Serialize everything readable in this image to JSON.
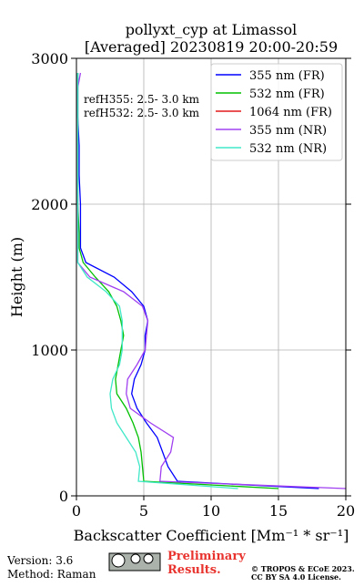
{
  "chart_data": {
    "type": "line",
    "title": "pollyxt_cyp at Limassol",
    "subtitle": "[Averaged] 20230819 20:00-20:59",
    "x_label": "Backscatter Coefficient [Mm⁻¹ * sr⁻¹]",
    "y_label": "Height (m)",
    "annotations": [
      "refH355:  2.5- 3.0 km",
      "refH532:  2.5- 3.0 km"
    ],
    "y": [
      50,
      100,
      200,
      300,
      400,
      500,
      600,
      700,
      800,
      900,
      1000,
      1100,
      1200,
      1300,
      1400,
      1500,
      1600,
      1700,
      1800,
      2000,
      2200,
      2400,
      2600,
      2800,
      2900
    ],
    "series": [
      {
        "name": "355 nm (FR)",
        "color": "#0000ff",
        "values": [
          18,
          7.5,
          6.8,
          6.4,
          6.0,
          5.2,
          4.5,
          4.1,
          4.3,
          4.8,
          5.1,
          5.1,
          5.3,
          5.0,
          4.1,
          2.8,
          0.7,
          0.3,
          0.3,
          0.3,
          0.2,
          0.2,
          0.1,
          0.1,
          0.1
        ]
      },
      {
        "name": "532 nm (FR)",
        "color": "#00c000",
        "values": [
          15,
          5.0,
          4.9,
          4.8,
          4.6,
          4.2,
          3.7,
          3.0,
          2.9,
          3.1,
          3.3,
          3.5,
          3.3,
          3.0,
          2.4,
          1.4,
          0.5,
          0.2,
          0.2,
          0.1,
          0.1,
          0.1,
          0.1,
          0.1,
          0.1
        ]
      },
      {
        "name": "1064 nm (FR)",
        "color": "#e41a1c",
        "values": [
          null,
          null,
          null,
          null,
          null,
          null,
          null,
          null,
          null,
          null,
          null,
          null,
          null,
          null,
          null,
          null,
          null,
          null,
          null,
          null,
          null,
          null,
          null,
          null,
          null
        ]
      },
      {
        "name": "355 nm (NR)",
        "color": "#a040f0",
        "values": [
          20,
          6.2,
          6.3,
          7.0,
          7.2,
          5.5,
          4.0,
          3.7,
          3.8,
          4.5,
          5.1,
          5.2,
          5.3,
          4.9,
          3.5,
          1.0,
          0.1,
          0.1,
          0.1,
          0.1,
          0.1,
          0.1,
          0.1,
          0.1,
          0.3
        ]
      },
      {
        "name": "532 nm (NR)",
        "color": "#40e8c8",
        "values": [
          12,
          4.6,
          4.7,
          4.4,
          3.7,
          3.0,
          2.6,
          2.5,
          2.7,
          3.2,
          3.4,
          3.4,
          3.4,
          3.2,
          2.2,
          0.8,
          0.1,
          0.1,
          0.1,
          0.1,
          0.1,
          0.1,
          0.1,
          0.1,
          0.1
        ]
      }
    ],
    "xlim": [
      0,
      20
    ],
    "xticks": [
      0,
      5,
      10,
      15,
      20
    ],
    "ylim": [
      0,
      3000
    ],
    "yticks": [
      0,
      1000,
      2000,
      3000
    ],
    "grid": true,
    "legend": "upper right"
  },
  "footer": {
    "version": "Version: 3.6",
    "method": "Method: Raman",
    "notice": "Preliminary Results.",
    "license_line1": "© TROPOS & ECoE 2023.",
    "license_line2": "CC BY SA 4.0 License."
  }
}
